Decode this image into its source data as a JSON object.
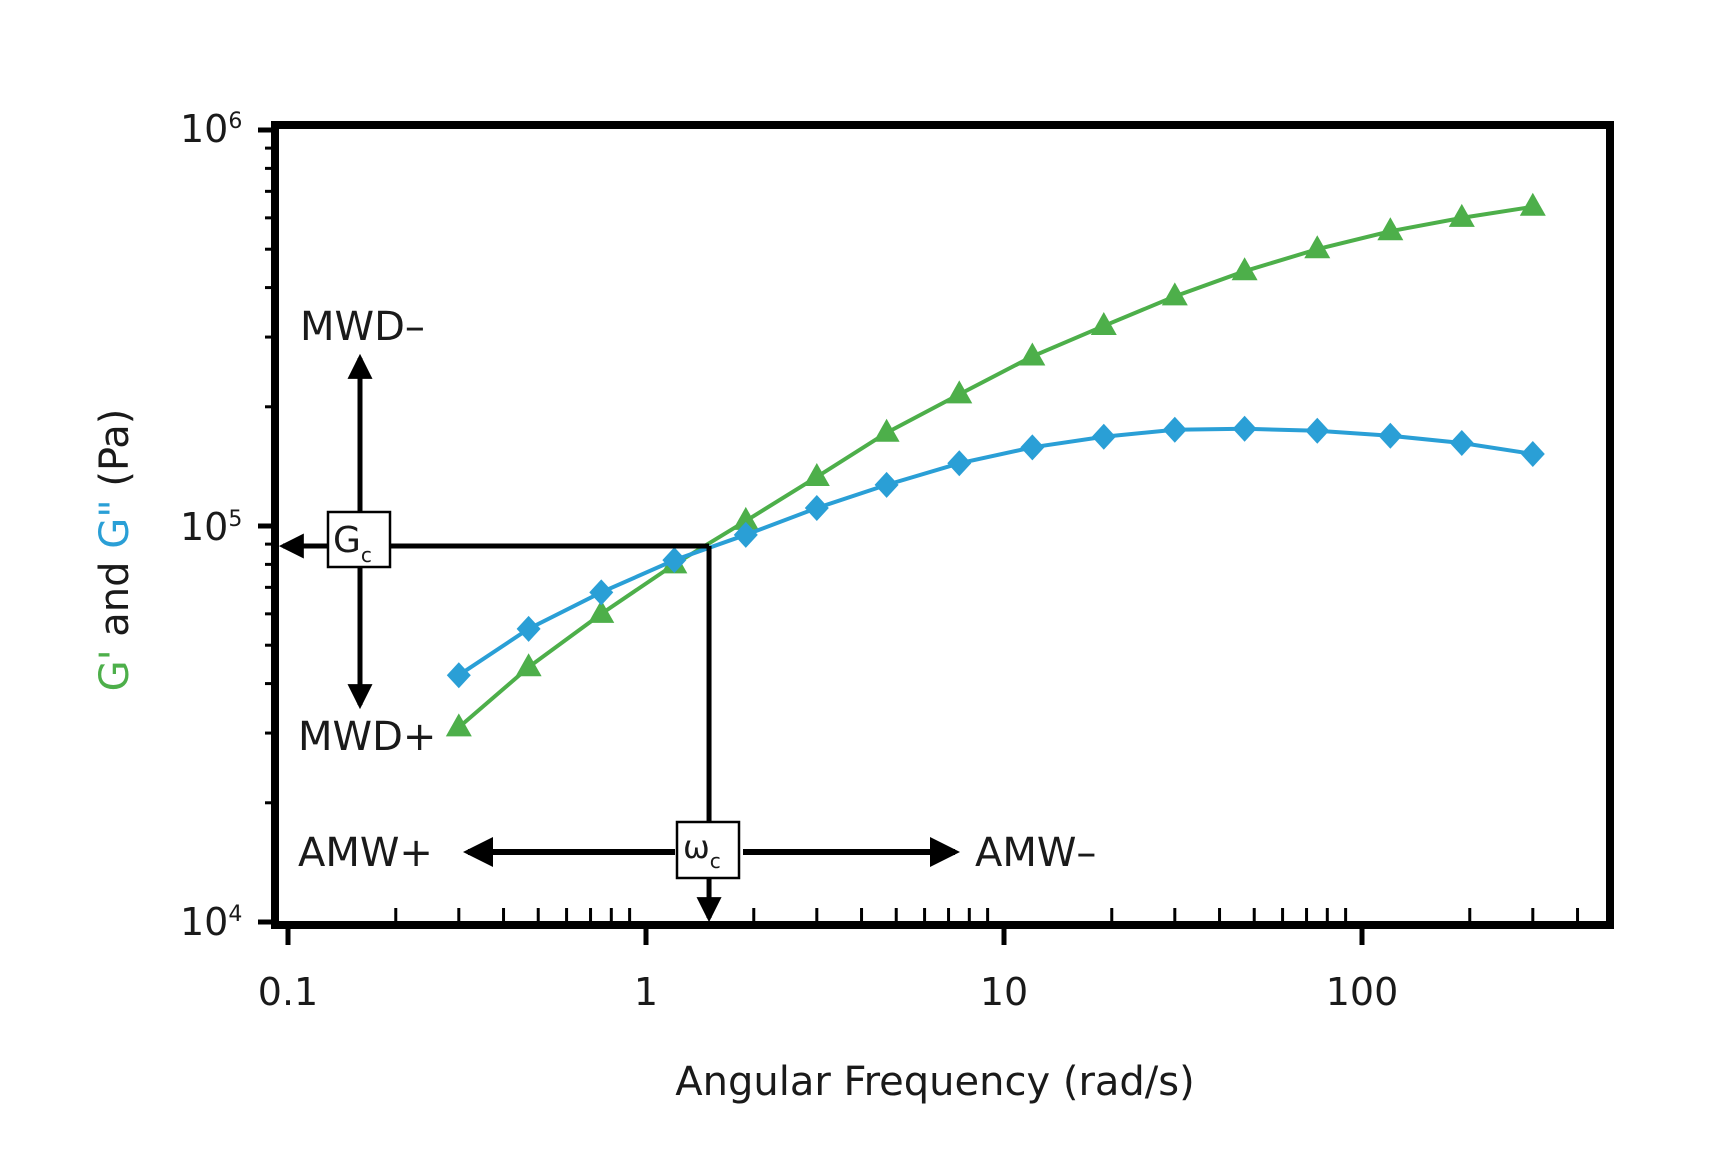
{
  "chart_data": {
    "type": "line",
    "title": "",
    "xlabel": "Angular Frequency (rad/s)",
    "ylabel": {
      "g_prime": "G'",
      "and": " and ",
      "g_double_prime": "G\"",
      "unit": " (Pa)"
    },
    "x_scale": "log",
    "y_scale": "log",
    "xlim": [
      0.1,
      500
    ],
    "ylim": [
      10000,
      1000000
    ],
    "x_ticks": [
      {
        "value": 0.1,
        "label": "0.1"
      },
      {
        "value": 1,
        "label": "1"
      },
      {
        "value": 10,
        "label": "10"
      },
      {
        "value": 100,
        "label": "100"
      }
    ],
    "y_ticks": [
      {
        "value": 10000,
        "base": "10",
        "exp": "4"
      },
      {
        "value": 100000,
        "base": "10",
        "exp": "5"
      },
      {
        "value": 1000000,
        "base": "10",
        "exp": "6"
      }
    ],
    "grid": false,
    "series": [
      {
        "name": "G'",
        "color": "#4daf4a",
        "marker": "triangle",
        "x": [
          0.3,
          0.47,
          0.75,
          1.2,
          1.9,
          3.0,
          4.7,
          7.5,
          12,
          19,
          30,
          47,
          75,
          120,
          190,
          300
        ],
        "y": [
          31000,
          44000,
          60000,
          80000,
          103000,
          133000,
          172000,
          215000,
          268000,
          320000,
          380000,
          440000,
          500000,
          555000,
          600000,
          640000
        ]
      },
      {
        "name": "G\"",
        "color": "#2a9fd6",
        "marker": "diamond",
        "x": [
          0.3,
          0.47,
          0.75,
          1.2,
          1.9,
          3.0,
          4.7,
          7.5,
          12,
          19,
          30,
          47,
          75,
          120,
          190,
          300
        ],
        "y": [
          42000,
          55000,
          68000,
          82000,
          95000,
          111000,
          127000,
          144000,
          158000,
          168000,
          175000,
          176000,
          174000,
          169000,
          162000,
          152000
        ]
      }
    ],
    "crossover": {
      "x": 1.5,
      "y": 89000,
      "g_label": {
        "main": "G",
        "sub": "c"
      },
      "w_label": {
        "main": "ω",
        "sub": "c"
      }
    },
    "annotations": {
      "mwd_minus": "MWD–",
      "mwd_plus": "MWD+",
      "amw_plus": "AMW+",
      "amw_minus": "AMW–"
    }
  }
}
